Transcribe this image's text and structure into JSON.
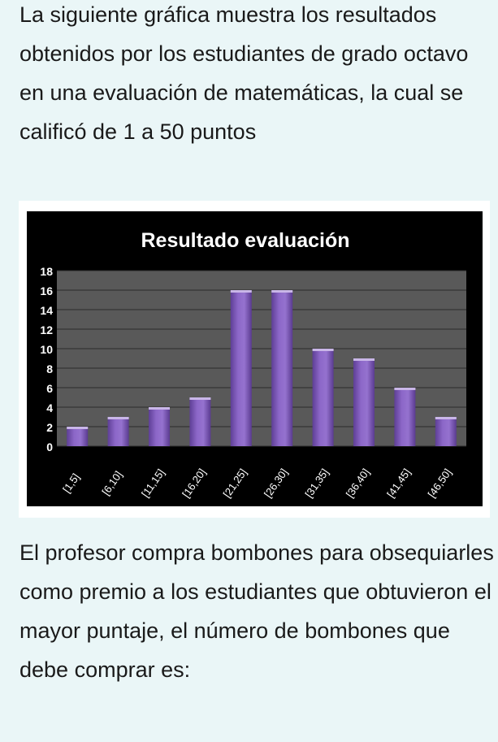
{
  "intro_text": "La siguiente gráfica muestra los resultados obtenidos por los estudiantes de grado octavo en una evaluación de matemáticas, la cual se calificó de 1 a 50 puntos",
  "question_text": "El profesor compra bombones para obsequiarles como premio  a los estudiantes que obtuvieron el mayor puntaje, el número de bombones que debe comprar es:",
  "colors": {
    "bar_fill": "#8a64c4",
    "bar_top": "#c9b6e8",
    "plot_bg": "#595959",
    "chart_bg": "#000000",
    "text": "#ffffff"
  },
  "chart_data": {
    "type": "bar",
    "title": "Resultado evaluación",
    "xlabel": "",
    "ylabel": "",
    "categories": [
      "[1,5]",
      "[6,10]",
      "[11,15]",
      "[16,20]",
      "[21,25]",
      "[26,30]",
      "[31,35]",
      "[36,40]",
      "[41,45]",
      "[46,50]"
    ],
    "values": [
      2,
      3,
      4,
      5,
      16,
      16,
      10,
      9,
      6,
      3
    ],
    "ylim": [
      0,
      18
    ],
    "yticks": [
      0,
      2,
      4,
      6,
      8,
      10,
      12,
      14,
      16,
      18
    ],
    "grid": true,
    "legend": "none"
  }
}
